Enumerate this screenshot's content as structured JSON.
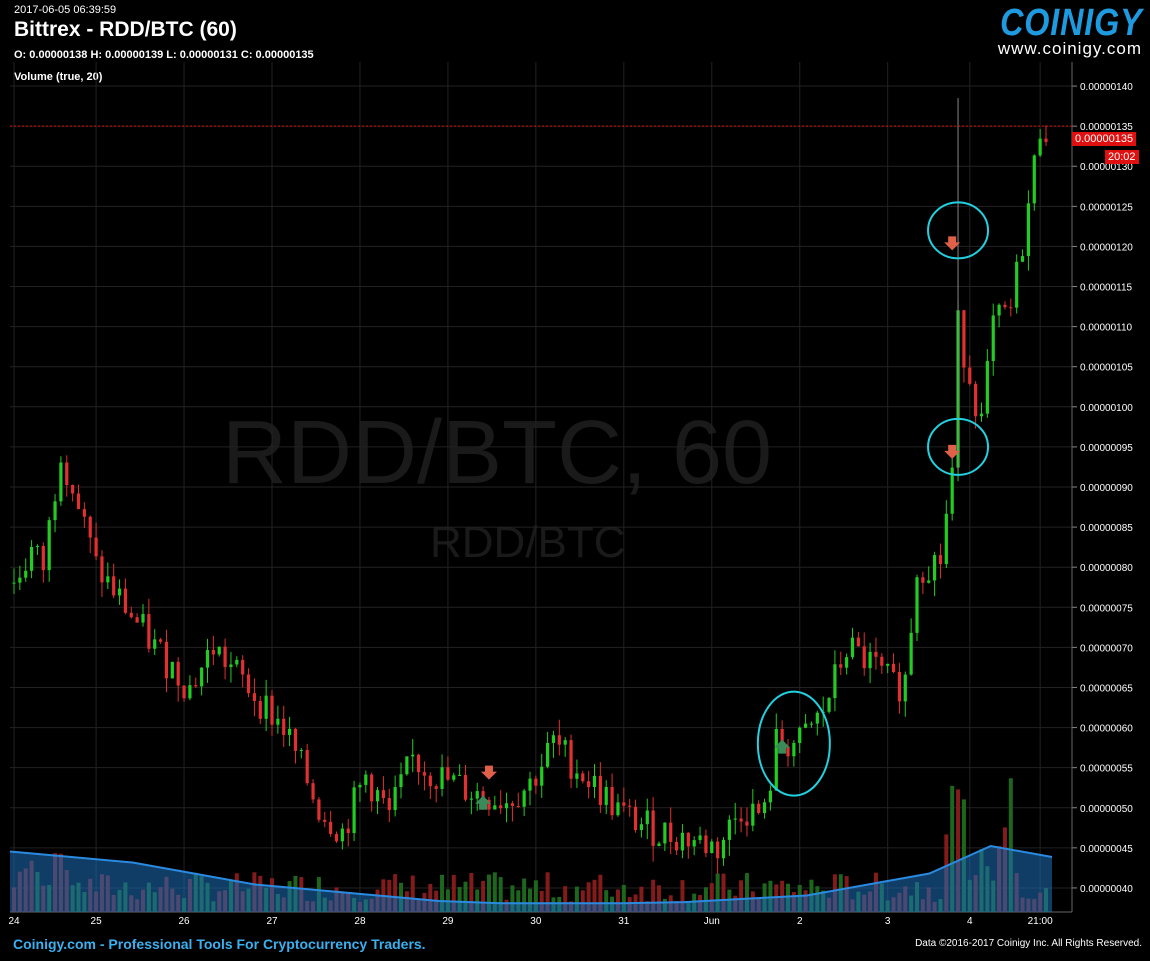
{
  "header": {
    "timestamp": "2017-06-05 06:39:59",
    "title": "Bittrex - RDD/BTC (60)",
    "ohlc": "O: 0.00000138 H: 0.00000139 L: 0.00000131 C: 0.00000135",
    "volume_label": "Volume (true, 20)"
  },
  "logo": {
    "word": "COINIGY",
    "url": "www.coinigy.com"
  },
  "watermark": {
    "main": "RDD/BTC, 60",
    "sub": "RDD/BTC"
  },
  "footer": {
    "left": "Coinigy.com - Professional Tools For Cryptocurrency Traders.",
    "right": "Data ©2016-2017 Coinigy Inc. All Rights Reserved."
  },
  "current_price": {
    "value": "0.00000135",
    "countdown": "20:02"
  },
  "colors": {
    "up": "#22cc22",
    "down": "#e03030",
    "volume_ma": "#1e6fb8",
    "annotation": "#22d0e0",
    "logo": "#1e9be0"
  },
  "chart_data": {
    "type": "candlestick",
    "ylim": [
      3.7e-07,
      1.43e-06
    ],
    "y_ticks": [
      "0.00000040",
      "0.00000045",
      "0.00000050",
      "0.00000055",
      "0.00000060",
      "0.00000065",
      "0.00000070",
      "0.00000075",
      "0.00000080",
      "0.00000085",
      "0.00000090",
      "0.00000095",
      "0.00000100",
      "0.00000105",
      "0.00000110",
      "0.00000115",
      "0.00000120",
      "0.00000125",
      "0.00000130",
      "0.00000135",
      "0.00000140"
    ],
    "x_ticks": [
      "24",
      "25",
      "26",
      "27",
      "28",
      "29",
      "30",
      "31",
      "Jun",
      "2",
      "3",
      "4",
      "21:00"
    ],
    "trend_close": [
      [
        0,
        7.8e-07
      ],
      [
        3,
        8.2e-07
      ],
      [
        5,
        8e-07
      ],
      [
        8,
        9.5e-07
      ],
      [
        10,
        9e-07
      ],
      [
        14,
        8e-07
      ],
      [
        18,
        7.6e-07
      ],
      [
        24,
        7e-07
      ],
      [
        30,
        6.5e-07
      ],
      [
        34,
        7e-07
      ],
      [
        40,
        6.5e-07
      ],
      [
        46,
        6e-07
      ],
      [
        52,
        5e-07
      ],
      [
        56,
        4.7e-07
      ],
      [
        60,
        5.4e-07
      ],
      [
        64,
        4.9e-07
      ],
      [
        68,
        5.6e-07
      ],
      [
        72,
        5.4e-07
      ],
      [
        78,
        5.2e-07
      ],
      [
        84,
        5.1e-07
      ],
      [
        88,
        5.3e-07
      ],
      [
        92,
        5.8e-07
      ],
      [
        96,
        5.5e-07
      ],
      [
        100,
        5.2e-07
      ],
      [
        104,
        4.9e-07
      ],
      [
        110,
        4.7e-07
      ],
      [
        116,
        4.6e-07
      ],
      [
        120,
        4.5e-07
      ],
      [
        124,
        5e-07
      ],
      [
        128,
        4.9e-07
      ],
      [
        130,
        5.8e-07
      ],
      [
        134,
        5.8e-07
      ],
      [
        138,
        6.2e-07
      ],
      [
        142,
        7e-07
      ],
      [
        146,
        6.8e-07
      ],
      [
        150,
        6.5e-07
      ],
      [
        152,
        6.6e-07
      ],
      [
        154,
        8e-07
      ],
      [
        158,
        8.1e-07
      ],
      [
        160,
        9.2e-07
      ],
      [
        161,
        1.1e-06
      ],
      [
        163,
        1.04e-06
      ],
      [
        165,
        9.8e-07
      ],
      [
        167,
        1.1e-06
      ],
      [
        170,
        1.12e-06
      ],
      [
        173,
        1.25e-06
      ],
      [
        175,
        1.35e-06
      ],
      [
        176,
        1.35e-06
      ]
    ],
    "candle_count": 177,
    "annotations": [
      {
        "type": "arrow-down",
        "x": 81,
        "y": 5.4e-07,
        "color": "#e0604a"
      },
      {
        "type": "arrow-up",
        "x": 80,
        "y": 5.1e-07,
        "color": "#3a8a5a"
      },
      {
        "type": "arrow-up",
        "x": 131,
        "y": 5.8e-07,
        "color": "#3a8a5a"
      },
      {
        "type": "arrow-down",
        "x": 160,
        "y": 1.2e-06,
        "color": "#e0604a"
      },
      {
        "type": "arrow-down",
        "x": 160,
        "y": 9.4e-07,
        "color": "#e0604a"
      }
    ],
    "circles": [
      {
        "x": 133,
        "y": 5.8e-07
      },
      {
        "x": 161,
        "y": 1.22e-06
      },
      {
        "x": 161,
        "y": 9.5e-07
      }
    ],
    "volume_ma_level": [
      0.55,
      0.5,
      0.45,
      0.35,
      0.25,
      0.2,
      0.15,
      0.1,
      0.08,
      0.08,
      0.08,
      0.09,
      0.12,
      0.15,
      0.25,
      0.35,
      0.6,
      0.5
    ]
  }
}
